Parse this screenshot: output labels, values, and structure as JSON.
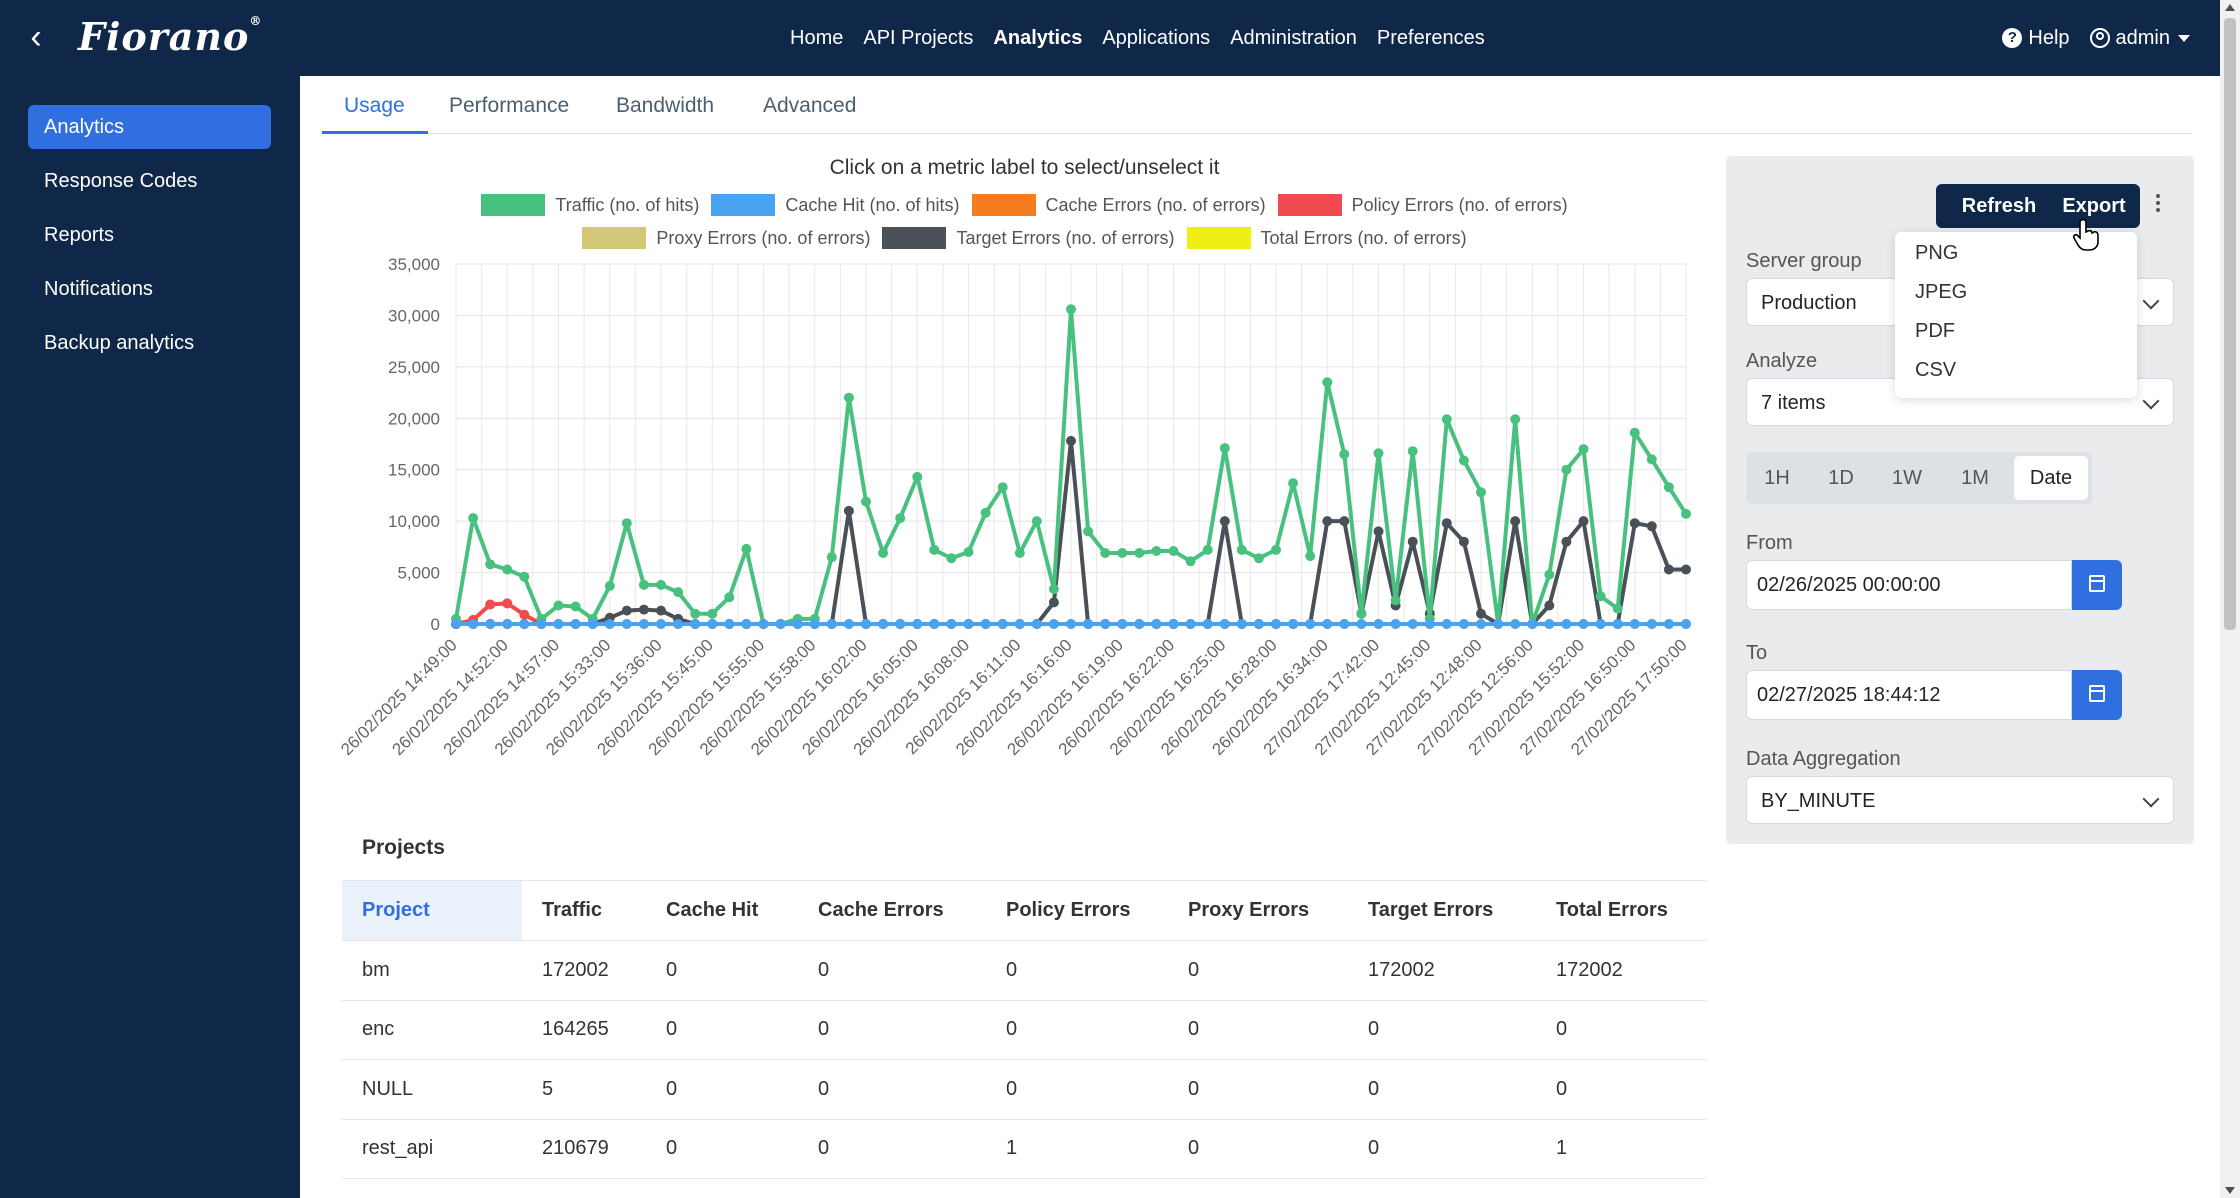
{
  "header": {
    "logo_text": "Fiorano",
    "logo_mark": "®",
    "nav": [
      "Home",
      "API Projects",
      "Analytics",
      "Applications",
      "Administration",
      "Preferences"
    ],
    "active_nav": "Analytics",
    "help_label": "Help",
    "user_label": "admin"
  },
  "sidebar": {
    "items": [
      {
        "label": "Analytics",
        "active": true
      },
      {
        "label": "Response Codes"
      },
      {
        "label": "Reports"
      },
      {
        "label": "Notifications"
      },
      {
        "label": "Backup analytics"
      }
    ]
  },
  "tabs": [
    "Usage",
    "Performance",
    "Bandwidth",
    "Advanced"
  ],
  "active_tab": "Usage",
  "chart_hint": "Click on a metric label to select/unselect it",
  "chart_data": {
    "type": "line",
    "ylim": [
      0,
      35000
    ],
    "yticks": [
      "35,000",
      "30,000",
      "25,000",
      "20,000",
      "15,000",
      "10,000",
      "5,000",
      "0"
    ],
    "x_tick_labels": [
      "26/02/2025 14:49:00",
      "26/02/2025 14:52:00",
      "26/02/2025 14:57:00",
      "26/02/2025 15:33:00",
      "26/02/2025 15:36:00",
      "26/02/2025 15:45:00",
      "26/02/2025 15:55:00",
      "26/02/2025 15:58:00",
      "26/02/2025 16:02:00",
      "26/02/2025 16:05:00",
      "26/02/2025 16:08:00",
      "26/02/2025 16:11:00",
      "26/02/2025 16:16:00",
      "26/02/2025 16:19:00",
      "26/02/2025 16:22:00",
      "26/02/2025 16:25:00",
      "26/02/2025 16:28:00",
      "26/02/2025 16:34:00",
      "27/02/2025 17:42:00",
      "27/02/2025 12:45:00",
      "27/02/2025 12:48:00",
      "27/02/2025 12:56:00",
      "27/02/2025 15:52:00",
      "27/02/2025 16:50:00",
      "27/02/2025 17:50:00"
    ],
    "legend_rows": [
      [
        0,
        1,
        2,
        3
      ],
      [
        4,
        5,
        6
      ]
    ],
    "series": [
      {
        "name": "Traffic (no. of hits)",
        "color": "#48c17f",
        "values": [
          500,
          10300,
          5800,
          5300,
          4600,
          500,
          1800,
          1700,
          500,
          3700,
          9800,
          3800,
          3800,
          3100,
          1000,
          1000,
          2600,
          7300,
          0,
          0,
          500,
          500,
          6500,
          22000,
          11900,
          6900,
          10300,
          14300,
          7200,
          6400,
          7000,
          10800,
          13300,
          6900,
          10000,
          3400,
          30600,
          9000,
          6900,
          6900,
          6900,
          7100,
          7100,
          6100,
          7200,
          17100,
          7200,
          6400,
          7200,
          13700,
          6600,
          23500,
          16500,
          1000,
          16600,
          2300,
          16800,
          500,
          19900,
          15900,
          12800,
          0,
          19900,
          0,
          4800,
          15000,
          17000,
          2700,
          1500,
          18600,
          16000,
          13300,
          10700
        ]
      },
      {
        "name": "Cache Hit (no. of hits)",
        "color": "#4aa3f0",
        "values": [
          0,
          0,
          0,
          0,
          0,
          0,
          0,
          0,
          0,
          0,
          0,
          0,
          0,
          0,
          0,
          0,
          0,
          0,
          0,
          0,
          0,
          0,
          0,
          0,
          0,
          0,
          0,
          0,
          0,
          0,
          0,
          0,
          0,
          0,
          0,
          0,
          0,
          0,
          0,
          0,
          0,
          0,
          0,
          0,
          0,
          0,
          0,
          0,
          0,
          0,
          0,
          0,
          0,
          0,
          0,
          0,
          0,
          0,
          0,
          0,
          0,
          0,
          0,
          0,
          0,
          0,
          0,
          0,
          0,
          0,
          0,
          0,
          0
        ]
      },
      {
        "name": "Cache Errors (no. of errors)",
        "color": "#f57c1f",
        "values": [
          0,
          0,
          0,
          0,
          0,
          0,
          0,
          0,
          0,
          0,
          0,
          0,
          0,
          0,
          0,
          0,
          0,
          0,
          0,
          0,
          0,
          0,
          0,
          0,
          0,
          0,
          0,
          0,
          0,
          0,
          0,
          0,
          0,
          0,
          0,
          0,
          0,
          0,
          0,
          0,
          0,
          0,
          0,
          0,
          0,
          0,
          0,
          0,
          0,
          0,
          0,
          0,
          0,
          0,
          0,
          0,
          0,
          0,
          0,
          0,
          0,
          0,
          0,
          0,
          0,
          0,
          0,
          0,
          0,
          0,
          0,
          0,
          0
        ]
      },
      {
        "name": "Policy Errors (no. of errors)",
        "color": "#f04a50",
        "values": [
          0,
          400,
          1900,
          2000,
          900,
          0,
          0,
          0,
          0,
          0,
          0,
          0,
          0,
          0,
          0,
          0,
          0,
          0,
          0,
          0,
          0,
          0,
          0,
          0,
          0,
          0,
          0,
          0,
          0,
          0,
          0,
          0,
          0,
          0,
          0,
          0,
          0,
          0,
          0,
          0,
          0,
          0,
          0,
          0,
          0,
          0,
          0,
          0,
          0,
          0,
          0,
          0,
          0,
          0,
          0,
          0,
          0,
          0,
          0,
          0,
          0,
          0,
          0,
          0,
          0,
          0,
          0,
          0,
          0,
          0,
          0,
          0,
          0
        ]
      },
      {
        "name": "Proxy Errors (no. of errors)",
        "color": "#d3c878",
        "values": [
          0,
          0,
          0,
          0,
          0,
          0,
          0,
          0,
          0,
          0,
          0,
          0,
          0,
          0,
          0,
          0,
          0,
          0,
          0,
          0,
          0,
          0,
          0,
          0,
          0,
          0,
          0,
          0,
          0,
          0,
          0,
          0,
          0,
          0,
          0,
          0,
          0,
          0,
          0,
          0,
          0,
          0,
          0,
          0,
          0,
          0,
          0,
          0,
          0,
          0,
          0,
          0,
          0,
          0,
          0,
          0,
          0,
          0,
          0,
          0,
          0,
          0,
          0,
          0,
          0,
          0,
          0,
          0,
          0,
          0,
          0,
          0,
          0
        ]
      },
      {
        "name": "Target Errors (no. of errors)",
        "color": "#4a5058",
        "values": [
          0,
          0,
          0,
          0,
          0,
          0,
          0,
          0,
          0,
          600,
          1300,
          1400,
          1300,
          500,
          0,
          0,
          0,
          0,
          0,
          0,
          0,
          0,
          0,
          11000,
          0,
          0,
          0,
          0,
          0,
          0,
          0,
          0,
          0,
          0,
          0,
          2100,
          17800,
          0,
          0,
          0,
          0,
          0,
          0,
          0,
          0,
          10000,
          0,
          0,
          0,
          0,
          0,
          10000,
          10000,
          1000,
          9000,
          1800,
          8000,
          1000,
          9800,
          8000,
          1000,
          0,
          10000,
          0,
          1800,
          8000,
          10000,
          0,
          0,
          9800,
          9500,
          5300,
          5300
        ]
      },
      {
        "name": "Total Errors (no. of errors)",
        "color": "#eef014",
        "values": [
          0,
          0,
          0,
          0,
          0,
          0,
          0,
          0,
          0,
          0,
          0,
          0,
          0,
          0,
          0,
          0,
          0,
          0,
          0,
          0,
          0,
          0,
          0,
          0,
          0,
          0,
          0,
          0,
          0,
          0,
          0,
          0,
          0,
          0,
          0,
          0,
          0,
          0,
          0,
          0,
          0,
          0,
          0,
          0,
          0,
          0,
          0,
          0,
          0,
          0,
          0,
          0,
          0,
          0,
          0,
          0,
          0,
          0,
          0,
          0,
          0,
          0,
          0,
          0,
          0,
          0,
          0,
          0,
          0,
          0,
          0,
          0,
          0
        ]
      }
    ]
  },
  "projects": {
    "title": "Projects",
    "columns": [
      "Project",
      "Traffic",
      "Cache Hit",
      "Cache Errors",
      "Policy Errors",
      "Proxy Errors",
      "Target Errors",
      "Total Errors"
    ],
    "rows": [
      [
        "bm",
        "172002",
        "0",
        "0",
        "0",
        "0",
        "172002",
        "172002"
      ],
      [
        "enc",
        "164265",
        "0",
        "0",
        "0",
        "0",
        "0",
        "0"
      ],
      [
        "NULL",
        "5",
        "0",
        "0",
        "0",
        "0",
        "0",
        "0"
      ],
      [
        "rest_api",
        "210679",
        "0",
        "0",
        "1",
        "0",
        "0",
        "1"
      ]
    ]
  },
  "panel": {
    "refresh_label": "Refresh",
    "export_label": "Export",
    "server_group_label": "Server group",
    "server_group_value": "Production",
    "analyze_label": "Analyze",
    "analyze_value": "7 items",
    "ranges": [
      "1H",
      "1D",
      "1W",
      "1M",
      "Date"
    ],
    "active_range": "Date",
    "from_label": "From",
    "from_value": "02/26/2025 00:00:00",
    "to_label": "To",
    "to_value": "02/27/2025 18:44:12",
    "aggregation_label": "Data Aggregation",
    "aggregation_value": "BY_MINUTE"
  },
  "export_menu": [
    "PNG",
    "JPEG",
    "PDF",
    "CSV"
  ]
}
